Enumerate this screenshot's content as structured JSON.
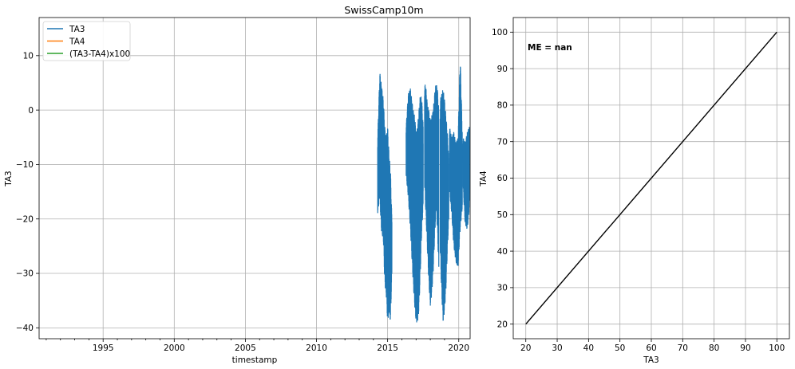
{
  "title": "SwissCamp10m",
  "chart_data": [
    {
      "type": "line",
      "xlabel": "timestamp",
      "ylabel": "TA3",
      "xlim": [
        1990.5,
        2020.8
      ],
      "ylim": [
        -42,
        17
      ],
      "x_ticks": [
        1995,
        2000,
        2005,
        2010,
        2015,
        2020
      ],
      "x_ticklabels": [
        "1995",
        "2000",
        "2005",
        "2010",
        "2015",
        "2020"
      ],
      "y_ticks": [
        -40,
        -30,
        -20,
        -10,
        0,
        10
      ],
      "y_ticklabels": [
        "−40",
        "−30",
        "−20",
        "−10",
        "0",
        "10"
      ],
      "grid": true,
      "legend": {
        "placement": "top-left",
        "entries": [
          {
            "name": "TA3",
            "color": "#1f77b4"
          },
          {
            "name": "TA4",
            "color": "#ff7f0e"
          },
          {
            "name": "(TA3-TA4)x100",
            "color": "#2ca02c"
          }
        ]
      },
      "series": [
        {
          "name": "TA3",
          "color": "#1f77b4",
          "segments": [
            {
              "x": [
                2014.3,
                2014.45,
                2014.55,
                2014.7,
                2014.8,
                2014.9,
                2015.0,
                2015.1,
                2015.2,
                2015.3
              ],
              "ymax": [
                -5,
                7,
                5,
                2,
                -3,
                -5,
                -3,
                -8,
                -11,
                -20
              ],
              "ymin": [
                -19,
                -16,
                -22,
                -24,
                -32,
                -34,
                -39,
                -37,
                -39,
                -30
              ]
            },
            {
              "x": [
                2016.3,
                2016.45,
                2016.6,
                2016.7,
                2016.8,
                2016.9,
                2017.0,
                2017.1,
                2017.2,
                2017.3,
                2017.4,
                2017.5
              ],
              "ymax": [
                -3,
                3,
                4,
                2,
                0,
                -1,
                -4,
                -3,
                0,
                3,
                2,
                -3
              ],
              "ymin": [
                -12,
                -16,
                -22,
                -27,
                -32,
                -36,
                -39,
                -39,
                -37,
                -30,
                -22,
                -18
              ]
            },
            {
              "x": [
                2017.6,
                2017.7,
                2017.8,
                2017.9,
                2018.0,
                2018.1,
                2018.2,
                2018.3,
                2018.4,
                2018.5,
                2018.6
              ],
              "ymax": [
                5,
                4,
                1,
                0,
                -2,
                -1,
                0,
                3,
                5,
                4,
                0
              ],
              "ymin": [
                -14,
                -20,
                -26,
                -32,
                -36,
                -34,
                -30,
                -24,
                -18,
                -22,
                -30
              ]
            },
            {
              "x": [
                2018.7,
                2018.8,
                2018.9,
                2019.0,
                2019.1,
                2019.2,
                2019.3
              ],
              "ymax": [
                2,
                3,
                4,
                2,
                -1,
                -4,
                -9
              ],
              "ymin": [
                -26,
                -34,
                -39,
                -37,
                -33,
                -26,
                -20
              ]
            },
            {
              "x": [
                2019.35,
                2019.5,
                2019.65,
                2019.8,
                2019.95,
                2020.1,
                2020.25
              ],
              "ymax": [
                -3,
                -5,
                -4,
                -6,
                -5,
                10,
                -4
              ],
              "ymin": [
                -15,
                -19,
                -25,
                -28,
                -29,
                -22,
                -18
              ]
            },
            {
              "x": [
                2020.3,
                2020.45,
                2020.6,
                2020.75
              ],
              "ymax": [
                -5,
                -6,
                -4,
                -3
              ],
              "ymin": [
                -14,
                -21,
                -22,
                -18
              ]
            }
          ]
        }
      ]
    },
    {
      "type": "line",
      "xlabel": "TA3",
      "ylabel": "TA4",
      "xlim": [
        16,
        104
      ],
      "ylim": [
        16,
        104
      ],
      "x_ticks": [
        20,
        30,
        40,
        50,
        60,
        70,
        80,
        90,
        100
      ],
      "x_ticklabels": [
        "20",
        "30",
        "40",
        "50",
        "60",
        "70",
        "80",
        "90",
        "100"
      ],
      "y_ticks": [
        20,
        30,
        40,
        50,
        60,
        70,
        80,
        90,
        100
      ],
      "y_ticklabels": [
        "20",
        "30",
        "40",
        "50",
        "60",
        "70",
        "80",
        "90",
        "100"
      ],
      "grid": true,
      "annotation": "ME = nan",
      "series": [
        {
          "color": "#000000",
          "x": [
            20,
            100
          ],
          "y": [
            20,
            100
          ]
        }
      ]
    }
  ]
}
